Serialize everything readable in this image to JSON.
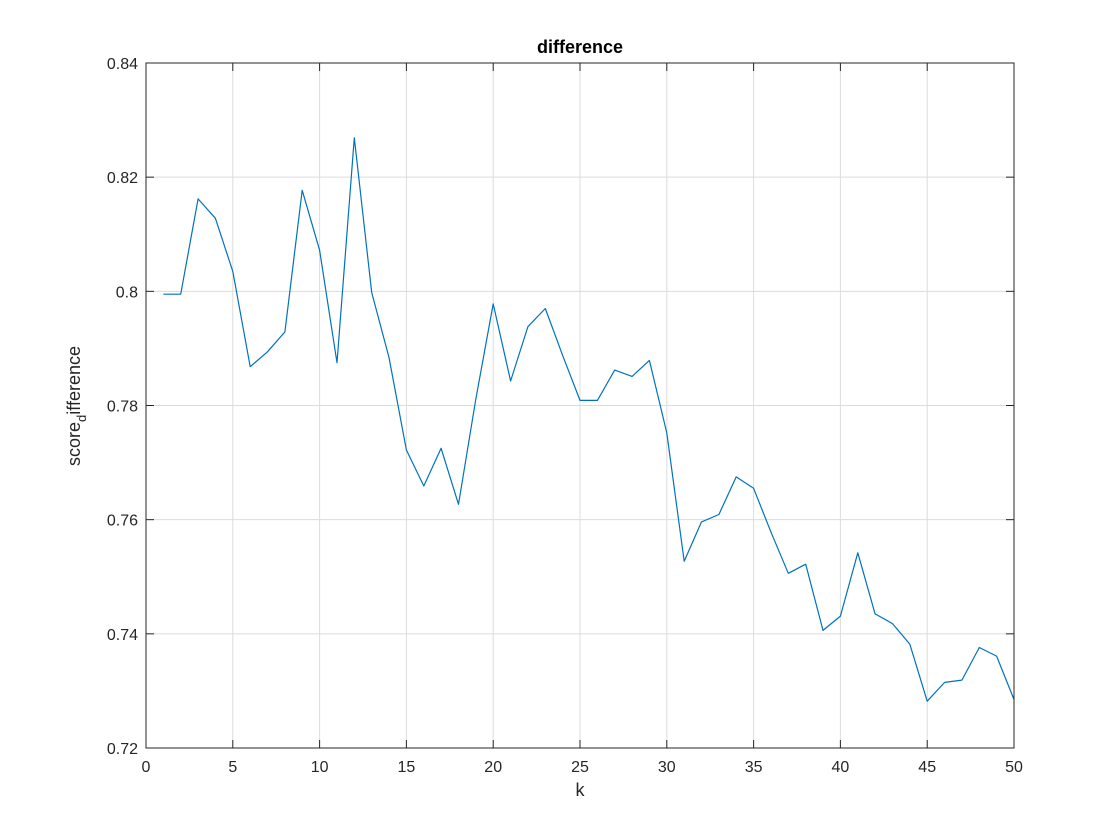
{
  "chart_data": {
    "type": "line",
    "title": "difference",
    "xlabel": "k",
    "ylabel_main": "score",
    "ylabel_sub": "d",
    "ylabel_tail": "ifference",
    "xlim": [
      0,
      50
    ],
    "ylim": [
      0.72,
      0.84
    ],
    "grid": true,
    "xticks": [
      0,
      5,
      10,
      15,
      20,
      25,
      30,
      35,
      40,
      45,
      50
    ],
    "xtick_labels": [
      "0",
      "5",
      "10",
      "15",
      "20",
      "25",
      "30",
      "35",
      "40",
      "45",
      "50"
    ],
    "yticks": [
      0.72,
      0.74,
      0.76,
      0.78,
      0.8,
      0.82,
      0.84
    ],
    "ytick_labels": [
      "0.72",
      "0.74",
      "0.76",
      "0.78",
      "0.8",
      "0.82",
      "0.84"
    ],
    "line_color": "#0072bd",
    "x": [
      1,
      2,
      3,
      4,
      5,
      6,
      7,
      8,
      9,
      10,
      11,
      12,
      13,
      14,
      15,
      16,
      17,
      18,
      19,
      20,
      21,
      22,
      23,
      24,
      25,
      26,
      27,
      28,
      29,
      30,
      31,
      32,
      33,
      34,
      35,
      36,
      37,
      38,
      39,
      40,
      41,
      42,
      43,
      44,
      45,
      46,
      47,
      48,
      49,
      50
    ],
    "y": [
      0.7995,
      0.7995,
      0.8162,
      0.8128,
      0.8035,
      0.7868,
      0.7894,
      0.7929,
      0.8177,
      0.8072,
      0.7875,
      0.8269,
      0.7998,
      0.7884,
      0.7722,
      0.7659,
      0.7725,
      0.7627,
      0.7811,
      0.7978,
      0.7843,
      0.7938,
      0.797,
      0.7888,
      0.7809,
      0.7809,
      0.7862,
      0.7851,
      0.7879,
      0.7752,
      0.7527,
      0.7596,
      0.7609,
      0.7675,
      0.7655,
      0.7578,
      0.7506,
      0.7522,
      0.7406,
      0.7431,
      0.7542,
      0.7435,
      0.7418,
      0.7382,
      0.7282,
      0.7315,
      0.7319,
      0.7376,
      0.7361,
      0.7285
    ]
  }
}
